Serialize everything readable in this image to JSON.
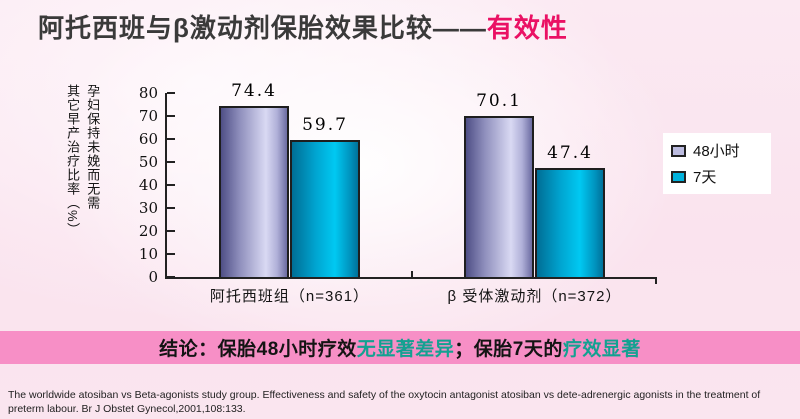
{
  "title": {
    "main": "阿托西班与β激动剂保胎效果比较——",
    "accent": "有效性",
    "accent_color": "#ea1164"
  },
  "chart_data": {
    "type": "bar",
    "title": "",
    "xlabel": "",
    "ylabel": "孕妇保持未娩而无需其它早产治疗比率（%）",
    "ylabel_lines": [
      "孕妇保持未娩而无需",
      "其它早产治疗比率（%）"
    ],
    "categories": [
      "阿托西班组（n=361）",
      "β 受体激动剂（n=372）"
    ],
    "series": [
      {
        "name": "48小时",
        "color": "#bcbce0",
        "values": [
          74.4,
          70.1
        ]
      },
      {
        "name": "7天",
        "color": "#00b2dc",
        "values": [
          59.7,
          47.4
        ]
      }
    ],
    "ylim": [
      0,
      80
    ],
    "yticks": [
      0,
      10,
      20,
      30,
      40,
      50,
      60,
      70,
      80
    ],
    "grid": false,
    "legend_position": "right"
  },
  "conclusion": {
    "bg_color": "#f78fc6",
    "segments": [
      {
        "text": "结论：保胎48小时疗效",
        "color": "#141414"
      },
      {
        "text": "无显著差异",
        "color": "#13a191"
      },
      {
        "text": "；保胎7天的",
        "color": "#141414"
      },
      {
        "text": "疗效显著",
        "color": "#13a191"
      }
    ]
  },
  "citation": "The worldwide atosiban vs Beta-agonists study group. Effectiveness and safety of the oxytocin antagonist atosiban vs dete-adrenergic agonists in the treatment of preterm labour. Br J Obstet Gynecol,2001,108:133."
}
